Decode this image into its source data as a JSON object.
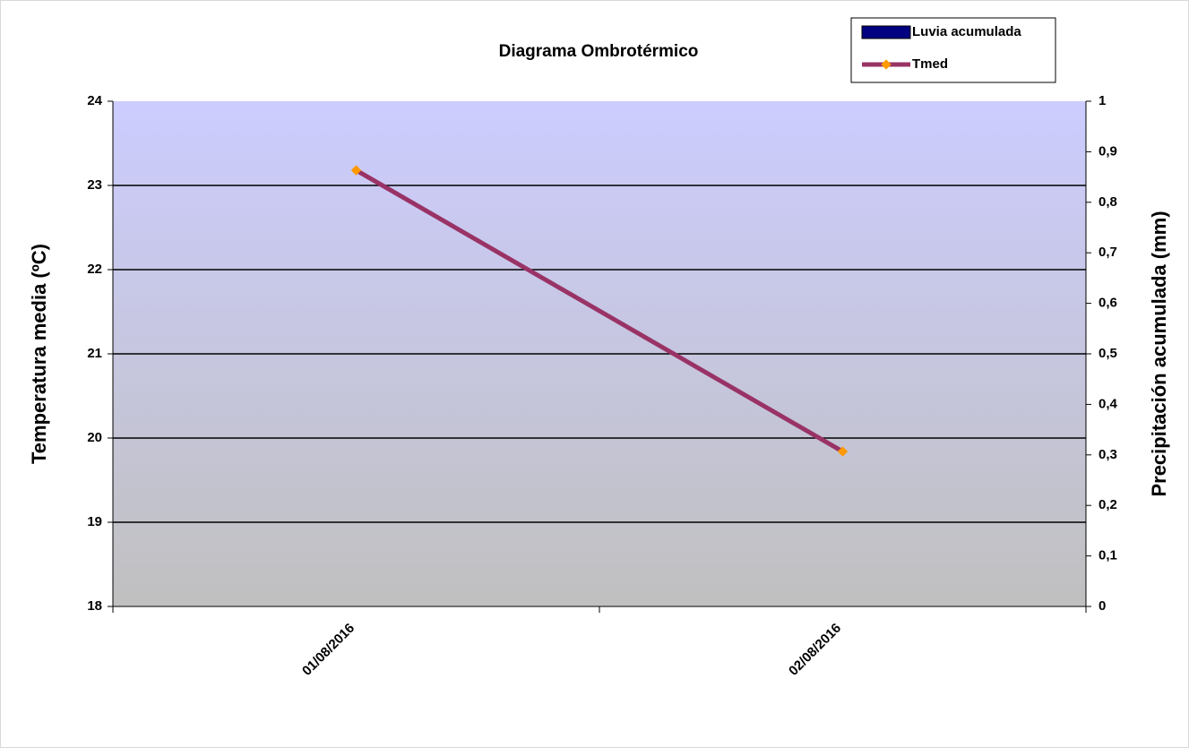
{
  "chart_data": {
    "type": "line",
    "title": "Diagrama Ombrotérmico",
    "categories": [
      "01/08/2016",
      "02/08/2016"
    ],
    "series": [
      {
        "name": "Luvia acumulada",
        "color": "#000080",
        "type": "bar",
        "axis": "y2",
        "values": [
          0,
          0
        ]
      },
      {
        "name": "Tmed",
        "color": "#993366",
        "marker_color": "#ff9900",
        "type": "line",
        "values": [
          23.18,
          19.84
        ]
      }
    ],
    "y_label": "Temperatura media (ºC)",
    "y2_label": "Precipitación acumulada (mm)",
    "ylim": [
      18,
      24
    ],
    "yticks": [
      18,
      19,
      20,
      21,
      22,
      23,
      24
    ],
    "y2lim": [
      0,
      1
    ],
    "y2ticks": [
      0,
      {
        "value": 0.1,
        "label": "0,1"
      },
      {
        "value": 0.2,
        "label": "0,2"
      },
      {
        "value": 0.3,
        "label": "0,3"
      },
      {
        "value": 0.4,
        "label": "0,4"
      },
      {
        "value": 0.5,
        "label": "0,5"
      },
      {
        "value": 0.6,
        "label": "0,6"
      },
      {
        "value": 0.7,
        "label": "0,7"
      },
      {
        "value": 0.8,
        "label": "0,8"
      },
      {
        "value": 0.9,
        "label": "0,9"
      },
      1
    ],
    "grid": true,
    "legend": "top-right"
  }
}
